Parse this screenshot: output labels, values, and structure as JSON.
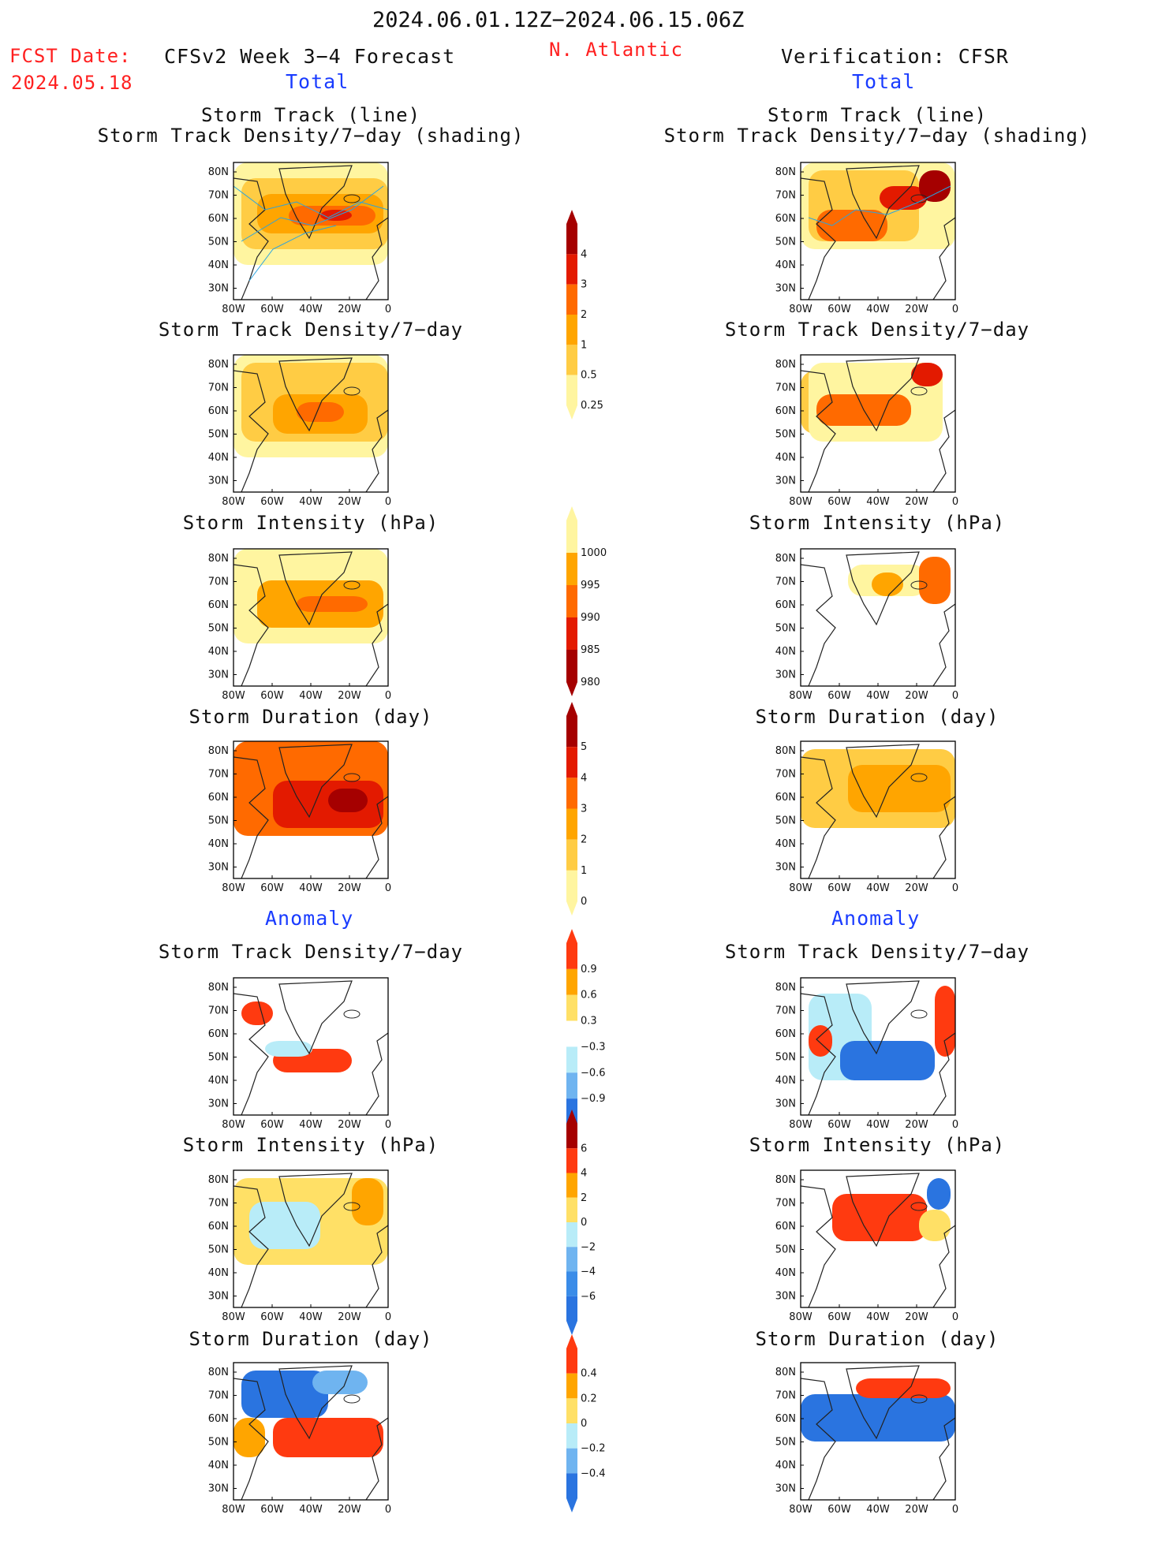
{
  "header": {
    "period": "2024.06.01.12Z−2024.06.15.06Z",
    "fcst_label": "FCST Date:",
    "fcst_date": "2024.05.18",
    "forecast_title": "CFSv2 Week 3−4 Forecast",
    "region": "N. Atlantic",
    "verification_title": "Verification: CFSR"
  },
  "sections": {
    "total": "Total",
    "anomaly": "Anomaly"
  },
  "panel_titles": {
    "track_line": "Storm Track (line)",
    "track_density_shading": "Storm Track Density/7−day (shading)",
    "track_density": "Storm Track Density/7−day",
    "intensity": "Storm Intensity (hPa)",
    "duration": "Storm Duration (day)"
  },
  "map_axes": {
    "lat_labels": [
      "80N",
      "70N",
      "60N",
      "50N",
      "40N",
      "30N"
    ],
    "lon_labels": [
      "80W",
      "60W",
      "40W",
      "20W",
      "0"
    ]
  },
  "colorbars": [
    {
      "name": "track-density-total",
      "labels": [
        "4",
        "3",
        "2",
        "1",
        "0.5",
        "0.25"
      ],
      "colors": [
        "#a50000",
        "#e31a00",
        "#ff6a00",
        "#ffa500",
        "#ffcc44",
        "#fff5a0"
      ]
    },
    {
      "name": "intensity-total",
      "labels": [
        "1000",
        "995",
        "990",
        "985",
        "980"
      ],
      "colors": [
        "#fff5a0",
        "#ffa500",
        "#ff6a00",
        "#e31a00",
        "#a50000"
      ]
    },
    {
      "name": "duration-total",
      "labels": [
        "5",
        "4",
        "3",
        "2",
        "1",
        "0"
      ],
      "colors": [
        "#a50000",
        "#e31a00",
        "#ff6a00",
        "#ffa500",
        "#ffcc44",
        "#fff5a0"
      ]
    },
    {
      "name": "track-density-anomaly",
      "labels": [
        "0.9",
        "0.6",
        "0.3",
        "−0.3",
        "−0.6",
        "−0.9"
      ],
      "colors": [
        "#ff3a10",
        "#ffa500",
        "#ffe066",
        "#ffffff",
        "#b8ecf8",
        "#6fb4f0",
        "#2a74e0"
      ]
    },
    {
      "name": "intensity-anomaly",
      "labels": [
        "6",
        "4",
        "2",
        "0",
        "−2",
        "−4",
        "−6"
      ],
      "colors": [
        "#a50000",
        "#ff3a10",
        "#ffa500",
        "#ffe066",
        "#b8ecf8",
        "#6fb4f0",
        "#3a8ce8",
        "#2a74e0"
      ]
    },
    {
      "name": "duration-anomaly",
      "labels": [
        "0.4",
        "0.2",
        "0",
        "−0.2",
        "−0.4"
      ],
      "colors": [
        "#ff3a10",
        "#ffa500",
        "#ffe066",
        "#b8ecf8",
        "#6fb4f0",
        "#2a74e0"
      ]
    }
  ],
  "colors": {
    "ocean": "#ffffff",
    "coast": "#222222",
    "track_line": "#29a3e0"
  }
}
